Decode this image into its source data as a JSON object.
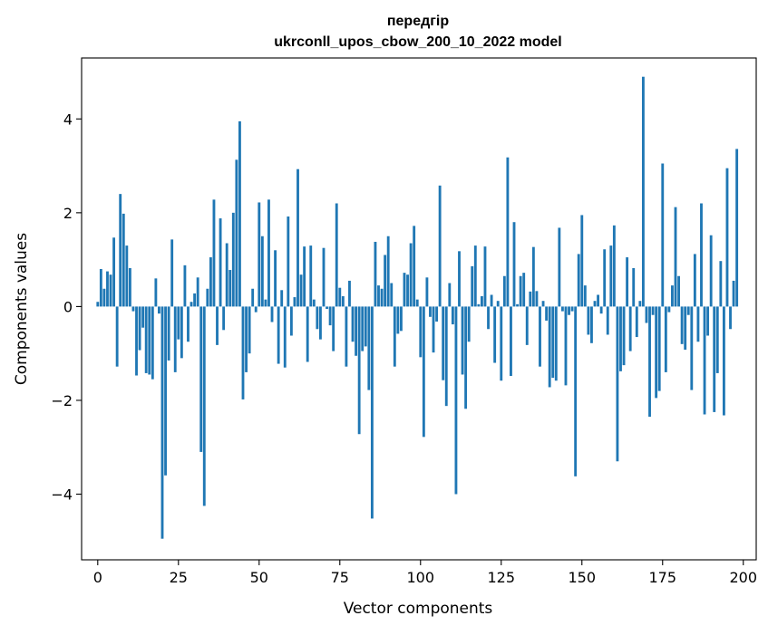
{
  "chart_data": {
    "type": "bar",
    "title": "передгір\nukrconll_upos_cbow_200_10_2022 model",
    "title_lines": [
      "передгір",
      "ukrconll_upos_cbow_200_10_2022 model"
    ],
    "xlabel": "Vector components",
    "ylabel": "Components values",
    "xlim": [
      -5,
      204
    ],
    "ylim": [
      -5.4,
      5.3
    ],
    "xticks": [
      0,
      25,
      50,
      75,
      100,
      125,
      150,
      175,
      200
    ],
    "xtick_labels": [
      "0",
      "25",
      "50",
      "75",
      "100",
      "125",
      "150",
      "175",
      "200"
    ],
    "yticks": [
      -4,
      -2,
      0,
      2,
      4
    ],
    "ytick_labels": [
      "−4",
      "−2",
      "0",
      "2",
      "4"
    ],
    "grid": false,
    "bar_color": "#1f77b4",
    "values": [
      0.1,
      0.8,
      0.38,
      0.75,
      0.68,
      1.47,
      -1.28,
      2.4,
      1.98,
      1.3,
      0.82,
      -0.1,
      -1.47,
      -0.93,
      -0.45,
      -1.42,
      -1.45,
      -1.55,
      0.6,
      -0.15,
      -4.95,
      -3.6,
      -1.15,
      1.43,
      -1.4,
      -0.7,
      -1.1,
      0.88,
      -0.75,
      0.1,
      0.28,
      0.62,
      -3.1,
      -4.25,
      0.38,
      1.05,
      2.28,
      -0.82,
      1.88,
      -0.5,
      1.35,
      0.78,
      2.0,
      3.13,
      3.95,
      -1.98,
      -1.4,
      -1.0,
      0.38,
      -0.12,
      2.22,
      1.5,
      0.15,
      2.28,
      -0.33,
      1.2,
      -1.22,
      0.35,
      -1.3,
      1.92,
      -0.62,
      0.2,
      2.93,
      0.68,
      1.28,
      -1.18,
      1.3,
      0.15,
      -0.48,
      -0.7,
      1.25,
      -0.05,
      -0.4,
      -0.95,
      2.2,
      0.4,
      0.22,
      -1.28,
      0.55,
      -0.75,
      -1.05,
      -2.72,
      -0.95,
      -0.85,
      -1.78,
      -4.52,
      1.38,
      0.45,
      0.38,
      1.1,
      1.5,
      0.5,
      -1.28,
      -0.58,
      -0.52,
      0.72,
      0.68,
      1.35,
      1.72,
      0.15,
      -1.08,
      -2.78,
      0.62,
      -0.22,
      -0.98,
      -0.32,
      2.58,
      -1.57,
      -2.12,
      0.5,
      -0.38,
      -4.0,
      1.18,
      -1.45,
      -2.18,
      -0.75,
      0.86,
      1.3,
      0.05,
      0.22,
      1.28,
      -0.48,
      0.25,
      -1.2,
      0.12,
      -1.58,
      0.65,
      3.18,
      -1.48,
      1.8,
      0.05,
      0.65,
      0.72,
      -0.82,
      0.32,
      1.27,
      0.33,
      -1.28,
      0.12,
      -0.3,
      -1.72,
      -1.52,
      -1.58,
      1.68,
      -0.1,
      -1.68,
      -0.18,
      -0.1,
      -3.62,
      1.12,
      1.95,
      0.45,
      -0.6,
      -0.78,
      0.12,
      0.25,
      -0.15,
      1.22,
      -0.6,
      1.3,
      1.73,
      -3.3,
      -1.38,
      -1.25,
      1.05,
      -0.95,
      0.82,
      -0.65,
      0.12,
      4.9,
      -0.35,
      -2.35,
      -0.18,
      -1.95,
      -1.8,
      3.05,
      -1.4,
      -0.12,
      0.45,
      2.12,
      0.65,
      -0.8,
      -0.92,
      -0.18,
      -1.78,
      1.12,
      -0.75,
      2.2,
      -2.3,
      -0.62,
      1.52,
      -2.25,
      -1.42,
      0.97,
      -2.32,
      2.95,
      -0.48,
      0.55,
      3.36
    ]
  }
}
